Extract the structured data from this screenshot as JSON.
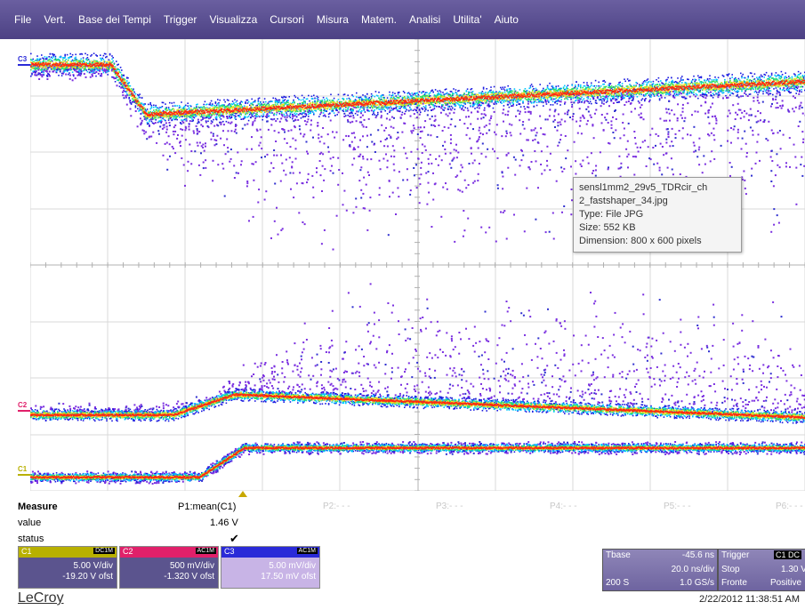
{
  "menu": [
    "File",
    "Vert.",
    "Base dei Tempi",
    "Trigger",
    "Visualizza",
    "Cursori",
    "Misura",
    "Matem.",
    "Analisi",
    "Utilita'",
    "Aiuto"
  ],
  "channel_markers": {
    "c3": "C3",
    "c2": "C2",
    "c1": "C1"
  },
  "tooltip": {
    "line1": "sensl1mm2_29v5_TDRcir_ch",
    "line2": "2_fastshaper_34.jpg",
    "line3": "Type: File JPG",
    "line4": "Size: 552 KB",
    "line5": "Dimension: 800 x 600 pixels"
  },
  "measure": {
    "title": "Measure",
    "value_label": "value",
    "status_label": "status",
    "p1_name": "P1:mean(C1)",
    "p1_value": "1.46 V",
    "p1_status": "✔",
    "p2": "P2:- - -",
    "p3": "P3:- - -",
    "p4": "P4:- - -",
    "p5": "P5:- - -",
    "p6": "P6:- - -"
  },
  "channels": [
    {
      "name": "C1",
      "coupling": "DC1M",
      "scale": "5.00 V/div",
      "offset": "-19.20 V ofst",
      "color": "#b8b000",
      "body": "#5b548e"
    },
    {
      "name": "C2",
      "coupling": "AC1M",
      "scale": "500 mV/div",
      "offset": "-1.320 V ofst",
      "color": "#e0206a",
      "body": "#5b548e"
    },
    {
      "name": "C3",
      "coupling": "AC1M",
      "scale": "5.00 mV/div",
      "offset": "17.50 mV ofst",
      "color": "#2a2ad8",
      "body": "#c8b4e6"
    }
  ],
  "timebase": {
    "label": "Tbase",
    "delay": "-45.6 ns",
    "scale": "20.0 ns/div",
    "samples": "200 S",
    "rate": "1.0 GS/s"
  },
  "trigger": {
    "label": "Trigger",
    "source": "C1 DC",
    "mode": "Stop",
    "level": "1.30 V",
    "type": "Fronte",
    "slope": "Positive"
  },
  "brand": "LeCroy",
  "datetime": "2/22/2012 11:38:51 AM"
}
